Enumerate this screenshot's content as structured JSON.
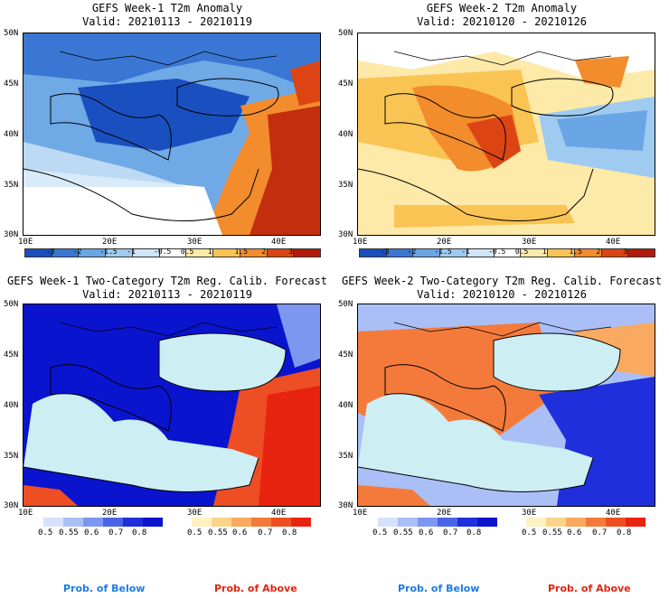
{
  "panels": [
    {
      "title": "GEFS Week-1 T2m Anomaly",
      "valid": "Valid: 20210113 - 20210119"
    },
    {
      "title": "GEFS Week-2 T2m Anomaly",
      "valid": "Valid: 20210120 - 20210126"
    },
    {
      "title": "GEFS Week-1 Two-Category T2m Reg. Calib. Forecast",
      "valid": "Valid: 20210113 - 20210119"
    },
    {
      "title": "GEFS Week-2 Two-Category T2m Reg. Calib. Forecast",
      "valid": "Valid: 20210120 - 20210126"
    }
  ],
  "lat_labels": [
    "50N",
    "45N",
    "40N",
    "35N",
    "30N"
  ],
  "lon_labels": [
    "10E",
    "20E",
    "30E",
    "40E"
  ],
  "anomaly_ticks": [
    "-3",
    "-2",
    "-1.5",
    "-1",
    "-0.5",
    "0.5",
    "1",
    "1.5",
    "2",
    "3"
  ],
  "anomaly_colors": [
    "#1a4fbf",
    "#3a77d4",
    "#6aa5e6",
    "#9fcbf0",
    "#cfe6f8",
    "#ffffff",
    "#fde9a8",
    "#f9c453",
    "#f28c2c",
    "#dc4513",
    "#b31a0c"
  ],
  "prob_ticks": [
    "0.5",
    "0.55",
    "0.6",
    "0.7",
    "0.8"
  ],
  "below_colors": [
    "#d6e2fb",
    "#aabff6",
    "#7d97f0",
    "#4a64e6",
    "#1f2fdc",
    "#0a14cf"
  ],
  "above_colors": [
    "#fff1c2",
    "#fcd38b",
    "#f9a960",
    "#f47a3c",
    "#ee4e23",
    "#e8230f"
  ],
  "legends": {
    "below": "Prob. of Below",
    "above": "Prob. of Above"
  },
  "legend_colors": {
    "below": "#1e7ae0",
    "above": "#e02510"
  }
}
